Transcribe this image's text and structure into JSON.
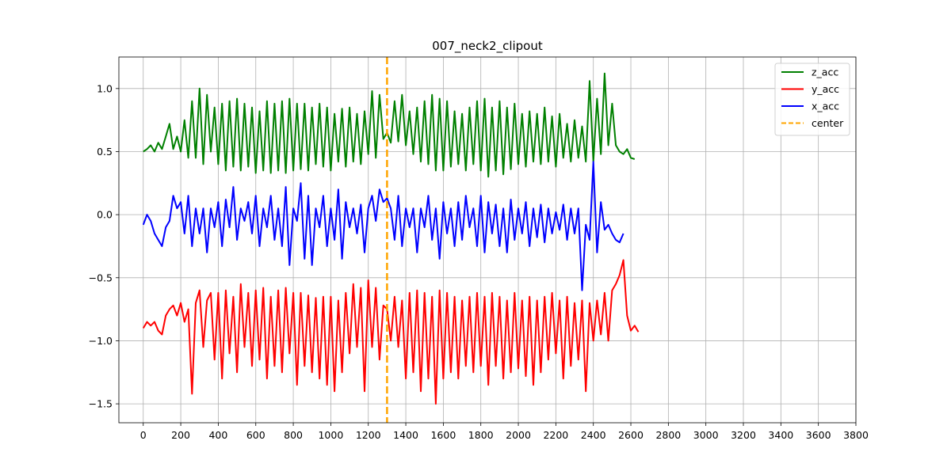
{
  "chart_data": {
    "type": "line",
    "title": "007_neck2_clipout",
    "xlabel": "",
    "ylabel": "",
    "xlim": [
      -130,
      3800
    ],
    "ylim": [
      -1.65,
      1.25
    ],
    "xticks": [
      0,
      200,
      400,
      600,
      800,
      1000,
      1200,
      1400,
      1600,
      1800,
      2000,
      2200,
      2400,
      2600,
      2800,
      3000,
      3200,
      3400,
      3600,
      3800
    ],
    "xtick_labels": [
      "0",
      "200",
      "400",
      "600",
      "800",
      "1000",
      "1200",
      "1400",
      "1600",
      "1800",
      "2000",
      "2200",
      "2400",
      "2600",
      "2800",
      "3000",
      "3200",
      "3400",
      "3600",
      "3800"
    ],
    "yticks": [
      -1.5,
      -1.0,
      -0.5,
      0.0,
      0.5,
      1.0
    ],
    "ytick_labels": [
      "−1.5",
      "−1.0",
      "−0.5",
      "0.0",
      "0.5",
      "1.0"
    ],
    "grid": true,
    "legend_position": "top-right",
    "series": [
      {
        "name": "z_acc",
        "color": "#008000",
        "x_start": 0,
        "x_step": 20,
        "values": [
          0.5,
          0.52,
          0.55,
          0.5,
          0.57,
          0.52,
          0.62,
          0.72,
          0.52,
          0.62,
          0.5,
          0.75,
          0.45,
          0.9,
          0.45,
          1.0,
          0.4,
          0.95,
          0.5,
          0.85,
          0.4,
          0.88,
          0.35,
          0.9,
          0.38,
          0.92,
          0.35,
          0.88,
          0.38,
          0.85,
          0.33,
          0.82,
          0.35,
          0.9,
          0.33,
          0.88,
          0.35,
          0.9,
          0.33,
          0.92,
          0.35,
          0.88,
          0.36,
          0.88,
          0.35,
          0.85,
          0.4,
          0.88,
          0.38,
          0.85,
          0.35,
          0.8,
          0.42,
          0.84,
          0.38,
          0.85,
          0.42,
          0.8,
          0.4,
          0.82,
          0.48,
          0.98,
          0.45,
          0.95,
          0.6,
          0.65,
          0.57,
          0.9,
          0.58,
          0.95,
          0.55,
          0.82,
          0.48,
          0.85,
          0.42,
          0.9,
          0.4,
          0.95,
          0.35,
          0.92,
          0.35,
          0.9,
          0.38,
          0.82,
          0.4,
          0.8,
          0.35,
          0.85,
          0.4,
          0.9,
          0.35,
          0.92,
          0.3,
          0.85,
          0.35,
          0.9,
          0.32,
          0.85,
          0.36,
          0.88,
          0.4,
          0.8,
          0.38,
          0.82,
          0.42,
          0.8,
          0.4,
          0.85,
          0.42,
          0.78,
          0.38,
          0.8,
          0.45,
          0.72,
          0.42,
          0.75,
          0.45,
          0.7,
          0.42,
          1.06,
          0.42,
          0.92,
          0.48,
          1.12,
          0.55,
          0.88,
          0.55,
          0.5,
          0.48,
          0.52,
          0.45,
          0.44
        ]
      },
      {
        "name": "y_acc",
        "color": "#ff0000",
        "x_start": 0,
        "x_step": 20,
        "values": [
          -0.9,
          -0.85,
          -0.88,
          -0.85,
          -0.92,
          -0.95,
          -0.8,
          -0.75,
          -0.72,
          -0.8,
          -0.7,
          -0.85,
          -0.75,
          -1.42,
          -0.7,
          -0.6,
          -1.05,
          -0.68,
          -0.62,
          -1.15,
          -0.62,
          -1.3,
          -0.6,
          -1.1,
          -0.65,
          -1.25,
          -0.55,
          -1.05,
          -0.62,
          -1.2,
          -0.6,
          -1.15,
          -0.58,
          -1.3,
          -0.65,
          -1.2,
          -0.6,
          -1.25,
          -0.58,
          -1.1,
          -0.62,
          -1.35,
          -0.62,
          -1.2,
          -0.64,
          -1.25,
          -0.66,
          -1.3,
          -0.65,
          -1.35,
          -0.65,
          -1.4,
          -0.68,
          -1.25,
          -0.62,
          -1.1,
          -0.55,
          -1.05,
          -0.58,
          -1.4,
          -0.52,
          -1.05,
          -0.58,
          -1.15,
          -0.72,
          -0.75,
          -1.0,
          -0.65,
          -1.05,
          -0.68,
          -1.3,
          -0.62,
          -1.25,
          -0.6,
          -1.4,
          -0.62,
          -1.3,
          -0.65,
          -1.5,
          -0.6,
          -1.3,
          -0.62,
          -1.25,
          -0.65,
          -1.3,
          -0.68,
          -1.2,
          -0.65,
          -1.25,
          -0.62,
          -1.2,
          -0.65,
          -1.35,
          -0.62,
          -1.2,
          -0.65,
          -1.3,
          -0.68,
          -1.25,
          -0.62,
          -1.22,
          -0.68,
          -1.28,
          -0.65,
          -1.35,
          -0.68,
          -1.25,
          -0.65,
          -1.15,
          -0.62,
          -1.1,
          -0.68,
          -1.3,
          -0.65,
          -1.2,
          -0.7,
          -1.15,
          -0.68,
          -1.4,
          -0.7,
          -1.0,
          -0.68,
          -0.95,
          -0.62,
          -1.0,
          -0.6,
          -0.55,
          -0.48,
          -0.36,
          -0.8,
          -0.92,
          -0.88,
          -0.93
        ]
      },
      {
        "name": "x_acc",
        "color": "#0000ff",
        "x_start": 0,
        "x_step": 20,
        "values": [
          -0.08,
          0.0,
          -0.05,
          -0.15,
          -0.2,
          -0.25,
          -0.1,
          -0.05,
          0.15,
          0.05,
          0.1,
          -0.15,
          0.15,
          -0.25,
          0.05,
          -0.15,
          0.05,
          -0.3,
          0.05,
          -0.1,
          0.1,
          -0.25,
          0.12,
          -0.1,
          0.22,
          -0.2,
          0.05,
          -0.05,
          0.1,
          -0.15,
          0.15,
          -0.25,
          0.05,
          -0.1,
          0.15,
          -0.2,
          0.05,
          -0.25,
          0.22,
          -0.4,
          0.05,
          -0.05,
          0.25,
          -0.35,
          0.15,
          -0.4,
          0.05,
          -0.1,
          0.15,
          -0.25,
          0.05,
          -0.2,
          0.2,
          -0.35,
          0.1,
          -0.1,
          0.05,
          -0.15,
          0.08,
          -0.3,
          0.05,
          0.15,
          -0.05,
          0.2,
          0.1,
          0.13,
          0.05,
          -0.2,
          0.15,
          -0.25,
          0.05,
          -0.1,
          0.05,
          -0.3,
          0.05,
          -0.1,
          0.15,
          -0.2,
          0.05,
          -0.35,
          0.1,
          -0.15,
          0.05,
          -0.25,
          0.1,
          -0.2,
          0.15,
          -0.1,
          0.05,
          -0.25,
          0.15,
          -0.3,
          0.1,
          -0.15,
          0.08,
          -0.25,
          0.05,
          -0.3,
          0.12,
          -0.2,
          0.05,
          -0.15,
          0.1,
          -0.25,
          0.05,
          -0.18,
          0.08,
          -0.22,
          0.05,
          -0.15,
          0.02,
          -0.12,
          0.08,
          -0.2,
          0.05,
          -0.15,
          0.05,
          -0.6,
          -0.08,
          -0.2,
          0.42,
          -0.3,
          0.1,
          -0.12,
          -0.08,
          -0.15,
          -0.2,
          -0.22,
          -0.15
        ]
      }
    ],
    "annotations": [
      {
        "type": "vline",
        "name": "center",
        "x": 1300,
        "color": "#ffa500",
        "style": "dashed"
      }
    ]
  }
}
